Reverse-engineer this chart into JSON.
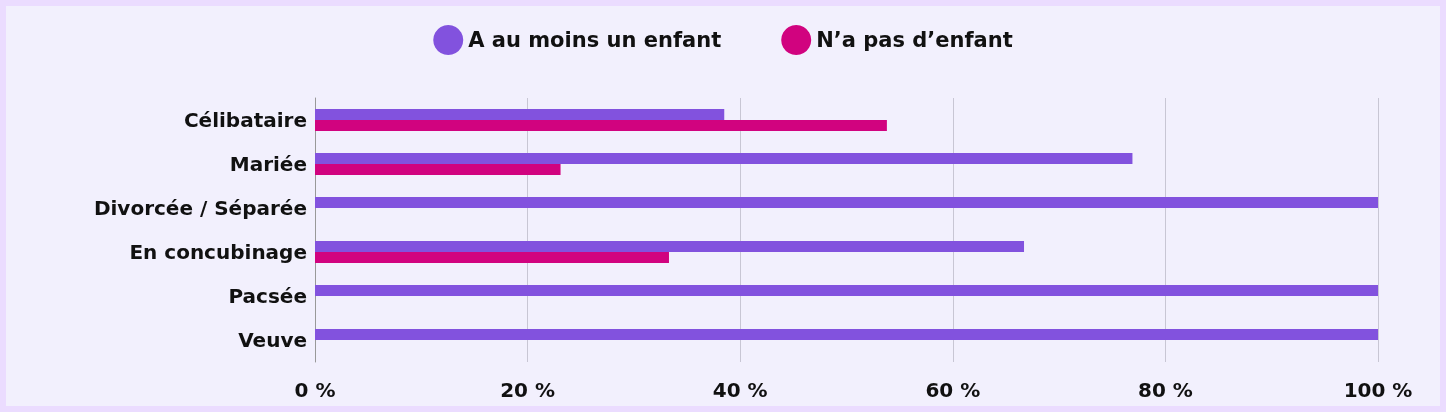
{
  "chart_data": {
    "type": "bar",
    "orientation": "horizontal",
    "categories": [
      "Célibataire",
      "Mariée",
      "Divorcée / Séparée",
      "En concubinage",
      "Pacsée",
      "Veuve"
    ],
    "series": [
      {
        "name": "A au moins un enfant",
        "color": "#8252de",
        "values": [
          38.5,
          76.9,
          100,
          66.7,
          100,
          100
        ]
      },
      {
        "name": "N’a pas d’enfant",
        "color": "#d1037f",
        "values": [
          53.8,
          23.1,
          0,
          33.3,
          0,
          0
        ]
      }
    ],
    "xlim": [
      0,
      100
    ],
    "xticks": [
      {
        "value": 0,
        "label": "0 %"
      },
      {
        "value": 20,
        "label": "20 %"
      },
      {
        "value": 40,
        "label": "40 %"
      },
      {
        "value": 60,
        "label": "60 %"
      },
      {
        "value": 80,
        "label": "80 %"
      },
      {
        "value": 100,
        "label": "100 %"
      }
    ],
    "grid": "x",
    "legend": "top"
  }
}
